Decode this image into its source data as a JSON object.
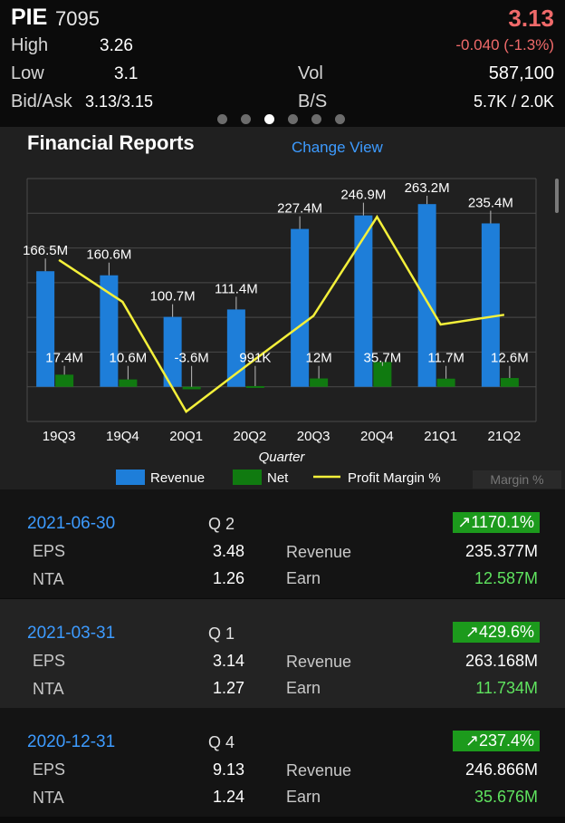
{
  "quote": {
    "symbol": "PIE",
    "code": "7095",
    "price": "3.13",
    "change": "-0.040 (-1.3%)",
    "high_label": "High",
    "high": "3.26",
    "low_label": "Low",
    "low": "3.1",
    "vol_label": "Vol",
    "vol": "587,100",
    "bidask_label": "Bid/Ask",
    "bidask": "3.13/3.15",
    "bs_label": "B/S",
    "bs": "5.7K / 2.0K",
    "pager_count": 6,
    "pager_active": 2
  },
  "colors": {
    "revenue": "#1e7ed9",
    "net": "#107a10",
    "margin": "#f4f03a",
    "blue_text": "#3d9bff",
    "green_text": "#5fe35f",
    "red_text": "#f06a6a",
    "badge_green": "#1c9a1c"
  },
  "panel": {
    "title": "Financial Reports",
    "change_view": "Change View",
    "margin_button": "Margin %"
  },
  "chart_data": {
    "type": "bar",
    "xlabel": "Quarter",
    "categories": [
      "19Q3",
      "19Q4",
      "20Q1",
      "20Q2",
      "20Q3",
      "20Q4",
      "21Q1",
      "21Q2"
    ],
    "series": [
      {
        "name": "Revenue",
        "values": [
          166.5,
          160.6,
          100.7,
          111.4,
          227.4,
          246.9,
          263.2,
          235.4
        ],
        "labels": [
          "166.5M",
          "160.6M",
          "100.7M",
          "111.4M",
          "227.4M",
          "246.9M",
          "263.2M",
          "235.4M"
        ]
      },
      {
        "name": "Net",
        "values": [
          17.4,
          10.6,
          -3.6,
          0.991,
          12,
          35.7,
          11.7,
          12.6
        ],
        "labels": [
          "17.4M",
          "10.6M",
          "-3.6M",
          "991K",
          "12M",
          "35.7M",
          "11.7M",
          "12.6M"
        ]
      },
      {
        "name": "Profit Margin %",
        "values": [
          10.5,
          6.6,
          -3.6,
          0.9,
          5.3,
          14.5,
          4.5,
          5.4
        ]
      }
    ],
    "ylim": [
      -50,
      300
    ],
    "grid": true,
    "legend": "bottom"
  },
  "reports": [
    {
      "date": "2021-06-30",
      "quarter": "Q 2",
      "growth": "↗1170.1%",
      "eps_label": "EPS",
      "eps": "3.48",
      "nta_label": "NTA",
      "nta": "1.26",
      "revenue_label": "Revenue",
      "revenue": "235.377M",
      "earn_label": "Earn",
      "earn": "12.587M"
    },
    {
      "date": "2021-03-31",
      "quarter": "Q 1",
      "growth": "↗429.6%",
      "eps_label": "EPS",
      "eps": "3.14",
      "nta_label": "NTA",
      "nta": "1.27",
      "revenue_label": "Revenue",
      "revenue": "263.168M",
      "earn_label": "Earn",
      "earn": "11.734M"
    },
    {
      "date": "2020-12-31",
      "quarter": "Q 4",
      "growth": "↗237.4%",
      "eps_label": "EPS",
      "eps": "9.13",
      "nta_label": "NTA",
      "nta": "1.24",
      "revenue_label": "Revenue",
      "revenue": "246.866M",
      "earn_label": "Earn",
      "earn": "35.676M"
    }
  ]
}
